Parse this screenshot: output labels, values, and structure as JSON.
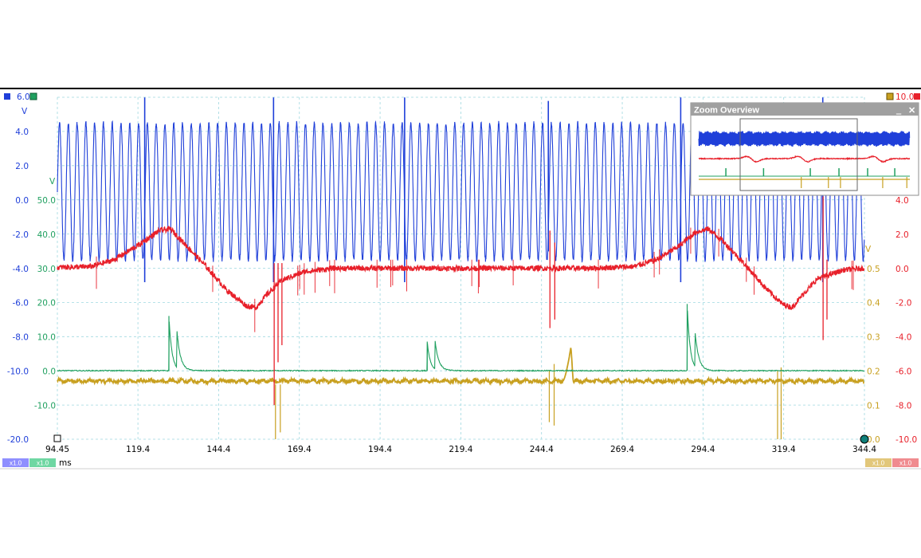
{
  "chart_data": {
    "type": "line",
    "title": "",
    "x_unit": "ms",
    "x_ticks": [
      "94.45",
      "119.4",
      "144.4",
      "169.4",
      "194.4",
      "219.4",
      "244.4",
      "269.4",
      "294.4",
      "319.4",
      "344.4"
    ],
    "xlim": [
      94.45,
      344.4
    ],
    "grid": true,
    "axes": [
      {
        "channel": "A",
        "side": "left",
        "color": "#1f3fd9",
        "top_value": "6.0",
        "unit": "V",
        "ticks": [
          "4.0",
          "2.0",
          "0.0",
          "-2.0",
          "-4.0",
          "-6.0",
          "-8.0",
          "-10.0",
          "-20.0"
        ]
      },
      {
        "channel": "B",
        "side": "left",
        "color": "#20a060",
        "unit": "V",
        "ticks": [
          "50.0",
          "40.0",
          "30.0",
          "20.0",
          "10.0",
          "0.0",
          "-10.0"
        ]
      },
      {
        "channel": "C",
        "side": "right",
        "color": "#c8a020",
        "unit": "V",
        "ticks": [
          "0.5",
          "0.4",
          "0.3",
          "0.2",
          "0.1",
          "0.0"
        ]
      },
      {
        "channel": "D",
        "side": "right",
        "color": "#e8202a",
        "top_value": "10.0",
        "ticks": [
          "4.0",
          "2.0",
          "0.0",
          "-2.0",
          "-4.0",
          "-6.0",
          "-8.0",
          "-10.0"
        ]
      }
    ],
    "series": [
      {
        "channel": "A",
        "color": "#1f3fd9",
        "kind": "oscillation",
        "range_V": [
          -3.5,
          4.5
        ],
        "period_ms": 2.72,
        "spikes": [
          {
            "x": 121.5,
            "dir": "both"
          },
          {
            "x": 161.4,
            "dir": "both"
          },
          {
            "x": 202.0,
            "dir": "both"
          },
          {
            "x": 246.5,
            "dir": "up"
          },
          {
            "x": 287.5,
            "dir": "both"
          },
          {
            "x": 331.5,
            "dir": "both"
          }
        ]
      },
      {
        "channel": "D",
        "color": "#e8202a",
        "kind": "slow_wave",
        "baseline_V": 0,
        "points": [
          [
            94.45,
            0.05
          ],
          [
            105,
            0.1
          ],
          [
            112,
            0.5
          ],
          [
            120,
            1.4
          ],
          [
            126,
            2.2
          ],
          [
            129.5,
            2.3
          ],
          [
            132,
            1.8
          ],
          [
            140,
            0.2
          ],
          [
            147,
            -1.3
          ],
          [
            153,
            -2.2
          ],
          [
            156,
            -2.3
          ],
          [
            159,
            -1.6
          ],
          [
            164,
            -0.7
          ],
          [
            171,
            -0.2
          ],
          [
            180,
            0.0
          ],
          [
            200,
            0.0
          ],
          [
            230,
            0.0
          ],
          [
            260,
            0.0
          ],
          [
            273,
            0.1
          ],
          [
            280,
            0.5
          ],
          [
            287,
            1.3
          ],
          [
            292,
            2.1
          ],
          [
            296,
            2.3
          ],
          [
            300,
            1.7
          ],
          [
            307,
            0.3
          ],
          [
            314,
            -1.2
          ],
          [
            319,
            -2.1
          ],
          [
            322,
            -2.3
          ],
          [
            325,
            -1.6
          ],
          [
            330,
            -0.6
          ],
          [
            338,
            -0.1
          ],
          [
            344.4,
            0.0
          ]
        ],
        "spikes": [
          {
            "x": 161.6,
            "lo": -8.0,
            "hi": 0.3
          },
          {
            "x": 162.8,
            "lo": -5.5,
            "hi": 0.3
          },
          {
            "x": 164.0,
            "lo": -4.5,
            "hi": 0.3
          },
          {
            "x": 247.0,
            "lo": -3.5,
            "hi": 2.2
          },
          {
            "x": 248.5,
            "lo": -3.0,
            "hi": 1.5
          },
          {
            "x": 331.6,
            "lo": -4.2,
            "hi": 4.2
          },
          {
            "x": 332.8,
            "lo": -3.0,
            "hi": 0.5
          }
        ]
      },
      {
        "channel": "B",
        "color": "#20a060",
        "kind": "pulses",
        "baseline_V": 0,
        "bursts": [
          {
            "x": 129.0,
            "peaks": [
              16.0,
              12.5
            ]
          },
          {
            "x": 209.0,
            "peaks": [
              8.5,
              9.0
            ]
          },
          {
            "x": 289.5,
            "peaks": [
              19.5,
              12.0
            ]
          }
        ]
      },
      {
        "channel": "C",
        "color": "#c8a020",
        "kind": "baseline_spikes",
        "baseline_V": 0.17,
        "spikes": [
          {
            "x": 162.0,
            "lo": 0.0,
            "hi": 0.16
          },
          {
            "x": 163.5,
            "lo": 0.02,
            "hi": 0.16
          },
          {
            "x": 246.8,
            "lo": 0.05,
            "hi": 0.2
          },
          {
            "x": 248.3,
            "lo": 0.04,
            "hi": 0.22
          },
          {
            "x": 317.5,
            "lo": 0.0,
            "hi": 0.2
          },
          {
            "x": 318.6,
            "lo": 0.0,
            "hi": 0.21
          }
        ],
        "bump": {
          "x0": 251.0,
          "x1": 254.2,
          "peak": 0.27
        }
      }
    ],
    "scale_boxes_left": [
      "x1.0",
      "x1.0"
    ],
    "scale_boxes_right": [
      "x1.0",
      "x1.0"
    ],
    "zoom_overview": {
      "title": "Zoom Overview",
      "minimize": "‗",
      "close": "✕"
    }
  }
}
